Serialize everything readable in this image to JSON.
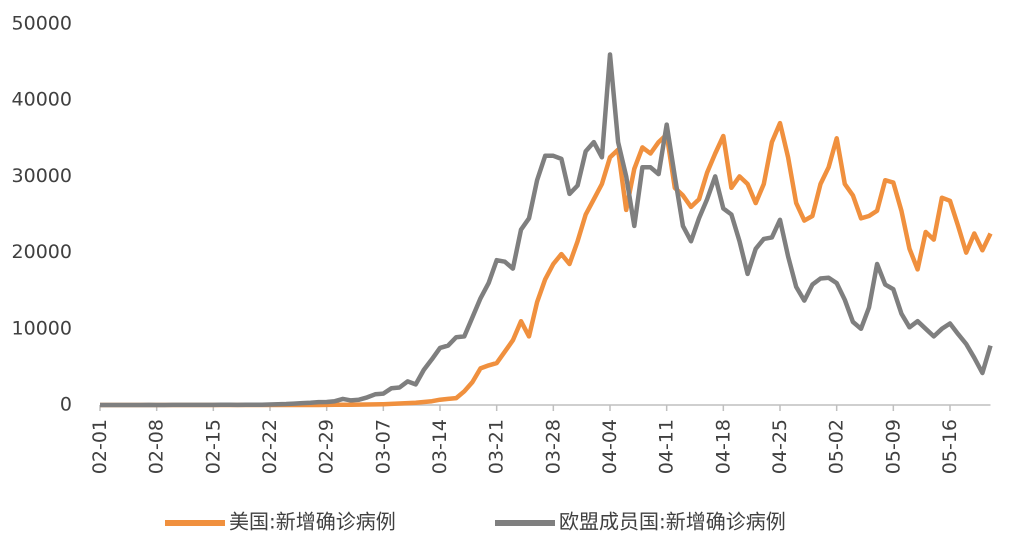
{
  "chart_data": {
    "type": "line",
    "categories": [
      "02-01",
      null,
      null,
      null,
      null,
      null,
      null,
      "02-08",
      null,
      null,
      null,
      null,
      null,
      null,
      "02-15",
      null,
      null,
      null,
      null,
      null,
      null,
      "02-22",
      null,
      null,
      null,
      null,
      null,
      null,
      "02-29",
      null,
      null,
      null,
      null,
      null,
      null,
      "03-07",
      null,
      null,
      null,
      null,
      null,
      null,
      "03-14",
      null,
      null,
      null,
      null,
      null,
      null,
      "03-21",
      null,
      null,
      null,
      null,
      null,
      null,
      "03-28",
      null,
      null,
      null,
      null,
      null,
      null,
      "04-04",
      null,
      null,
      null,
      null,
      null,
      null,
      "04-11",
      null,
      null,
      null,
      null,
      null,
      null,
      "04-18",
      null,
      null,
      null,
      null,
      null,
      null,
      "04-25",
      null,
      null,
      null,
      null,
      null,
      null,
      "05-02",
      null,
      null,
      null,
      null,
      null,
      null,
      "05-09",
      null,
      null,
      null,
      null,
      null,
      null,
      "05-16",
      null,
      null,
      null,
      null,
      null
    ],
    "series": [
      {
        "name": "美国:新增确诊病例",
        "color": "#f0903e",
        "values": [
          0,
          0,
          0,
          0,
          0,
          0,
          0,
          0,
          0,
          0,
          0,
          0,
          0,
          0,
          0,
          0,
          0,
          0,
          0,
          0,
          0,
          0,
          0,
          0,
          0,
          0,
          0,
          0,
          10,
          20,
          30,
          40,
          50,
          60,
          80,
          100,
          150,
          200,
          250,
          300,
          400,
          500,
          700,
          800,
          900,
          1800,
          3000,
          4800,
          5200,
          5500,
          7000,
          8500,
          11000,
          9000,
          13500,
          16500,
          18500,
          19800,
          18500,
          21500,
          25000,
          27000,
          29000,
          32500,
          33500,
          25600,
          31000,
          33800,
          33000,
          34500,
          35500,
          28500,
          27500,
          26000,
          27000,
          30500,
          33000,
          35300,
          28500,
          30000,
          29000,
          26500,
          29000,
          34500,
          37000,
          32500,
          26500,
          24200,
          24800,
          29000,
          31200,
          35000,
          29000,
          27500,
          24500,
          24800,
          25500,
          29500,
          29200,
          25500,
          20500,
          17800,
          22700,
          21700,
          27200,
          26800,
          23500,
          20000,
          22500,
          20300,
          22500
        ]
      },
      {
        "name": "欧盟成员国:新增确诊病例",
        "color": "#7f7f7f",
        "values": [
          2,
          3,
          4,
          3,
          5,
          6,
          8,
          6,
          5,
          10,
          12,
          15,
          9,
          10,
          14,
          20,
          25,
          18,
          22,
          30,
          40,
          60,
          100,
          130,
          180,
          250,
          300,
          380,
          400,
          500,
          800,
          600,
          700,
          1000,
          1400,
          1500,
          2200,
          2300,
          3100,
          2700,
          4600,
          6000,
          7500,
          7800,
          8900,
          9000,
          11500,
          14000,
          16000,
          19000,
          18800,
          17900,
          23000,
          24500,
          29500,
          32700,
          32700,
          32300,
          27700,
          28800,
          33300,
          34500,
          32500,
          46000,
          34500,
          30000,
          23500,
          31200,
          31200,
          30300,
          36800,
          30000,
          23500,
          21500,
          24500,
          27000,
          30000,
          25800,
          25000,
          21500,
          17200,
          20500,
          21800,
          22000,
          24300,
          19500,
          15500,
          13700,
          15800,
          16600,
          16700,
          16000,
          13800,
          10900,
          10000,
          12800,
          18500,
          15800,
          15200,
          12000,
          10200,
          11000,
          10000,
          9000,
          10000,
          10700,
          9300,
          8000,
          6200,
          4200,
          7800
        ]
      }
    ],
    "ylim": [
      0,
      50000
    ],
    "yticks": [
      0,
      10000,
      20000,
      30000,
      40000,
      50000
    ]
  }
}
